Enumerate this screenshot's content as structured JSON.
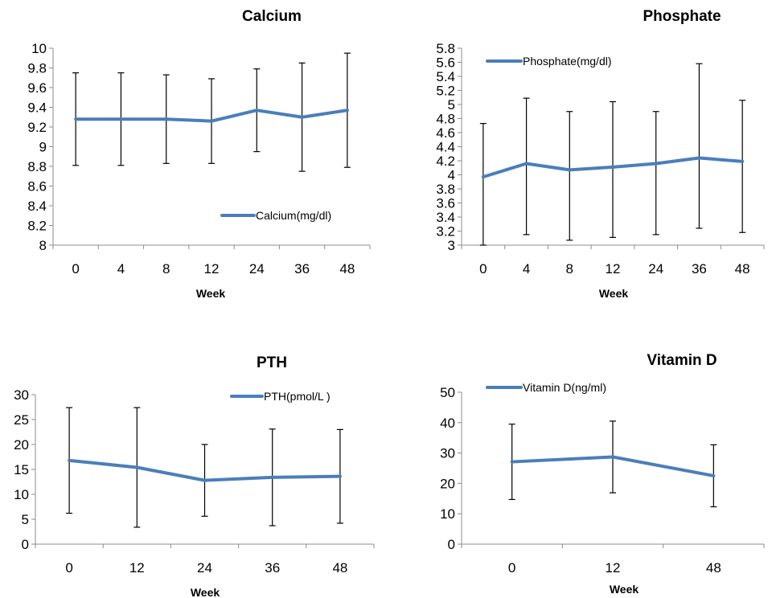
{
  "colors": {
    "series": "#4a7ebb",
    "error_bar": "#000000",
    "axis": "#8c8c8c"
  },
  "chart_data": [
    {
      "type": "line",
      "title": "Calcium",
      "xlabel": "Week",
      "ylabel": "",
      "categories": [
        "0",
        "4",
        "8",
        "12",
        "24",
        "36",
        "48"
      ],
      "series": [
        {
          "name": "Calcium(mg/dl)",
          "values": [
            9.28,
            9.28,
            9.28,
            9.26,
            9.37,
            9.3,
            9.37
          ],
          "error_low": [
            8.81,
            8.81,
            8.83,
            8.83,
            8.95,
            8.75,
            8.79
          ],
          "error_high": [
            9.75,
            9.75,
            9.73,
            9.69,
            9.79,
            9.85,
            9.95
          ]
        }
      ],
      "ylim": [
        8,
        10
      ],
      "yticks": [
        "8",
        "8.2",
        "8.4",
        "8.6",
        "8.8",
        "9",
        "9.2",
        "9.4",
        "9.6",
        "9.8",
        "10"
      ],
      "legend": "bottom-right",
      "grid": false
    },
    {
      "type": "line",
      "title": "Phosphate",
      "xlabel": "Week",
      "ylabel": "",
      "categories": [
        "0",
        "4",
        "8",
        "12",
        "24",
        "36",
        "48"
      ],
      "series": [
        {
          "name": "Phosphate(mg/dl)",
          "values": [
            3.97,
            4.16,
            4.07,
            4.11,
            4.16,
            4.24,
            4.19
          ],
          "error_low": [
            3.0,
            3.15,
            3.07,
            3.11,
            3.15,
            3.24,
            3.18
          ],
          "error_high": [
            4.73,
            5.09,
            4.9,
            5.04,
            4.9,
            5.58,
            5.06
          ]
        }
      ],
      "ylim": [
        3,
        5.8
      ],
      "yticks": [
        "3",
        "3.2",
        "3.4",
        "3.6",
        "3.8",
        "4",
        "4.2",
        "4.4",
        "4.6",
        "4.8",
        "5",
        "5.2",
        "5.4",
        "5.6",
        "5.8"
      ],
      "legend": "top-left",
      "grid": false
    },
    {
      "type": "line",
      "title": "PTH",
      "xlabel": "Week",
      "ylabel": "",
      "categories": [
        "0",
        "12",
        "24",
        "36",
        "48"
      ],
      "series": [
        {
          "name": "PTH(pmol/L )",
          "values": [
            16.8,
            15.4,
            12.8,
            13.4,
            13.6
          ],
          "error_low": [
            6.2,
            3.4,
            5.6,
            3.7,
            4.2
          ],
          "error_high": [
            27.4,
            27.4,
            20.0,
            23.1,
            23.0
          ]
        }
      ],
      "ylim": [
        0,
        30
      ],
      "yticks": [
        "0",
        "5",
        "10",
        "15",
        "20",
        "25",
        "30"
      ],
      "legend": "top-right",
      "grid": false
    },
    {
      "type": "line",
      "title": "Vitamin D",
      "xlabel": "Week",
      "ylabel": "",
      "categories": [
        "0",
        "12",
        "48"
      ],
      "series": [
        {
          "name": "Vitamin D(ng/ml)",
          "values": [
            27.1,
            28.7,
            22.5
          ],
          "error_low": [
            14.7,
            16.9,
            12.3
          ],
          "error_high": [
            39.5,
            40.5,
            32.7
          ]
        }
      ],
      "ylim": [
        0,
        50
      ],
      "yticks": [
        "0",
        "10",
        "20",
        "30",
        "40",
        "50"
      ],
      "legend": "top-left",
      "grid": false
    }
  ]
}
